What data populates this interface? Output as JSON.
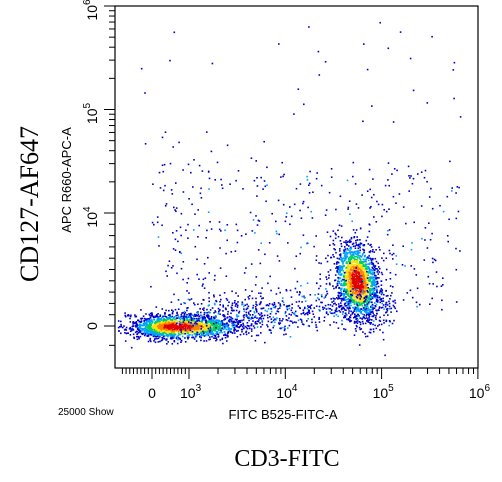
{
  "chart_data": {
    "type": "scatter",
    "title": "",
    "xlabel": "FITC B525-FITC-A",
    "ylabel": "APC R660-APC-A",
    "outer_xlabel": "CD3-FITC",
    "outer_ylabel": "CD127-AF647",
    "event_count": "25000 Show",
    "x_scale": "biexponential",
    "y_scale": "biexponential",
    "x_ticks": [
      {
        "label": "0",
        "value": 0
      },
      {
        "label": "10",
        "exp": "3",
        "value": 1000
      },
      {
        "label": "10",
        "exp": "4",
        "value": 10000
      },
      {
        "label": "10",
        "exp": "5",
        "value": 100000
      },
      {
        "label": "10",
        "exp": "6",
        "value": 1000000
      }
    ],
    "y_ticks": [
      {
        "label": "0",
        "value": 0
      },
      {
        "label": "10",
        "exp": "4",
        "value": 10000
      },
      {
        "label": "10",
        "exp": "5",
        "value": 100000
      },
      {
        "label": "10",
        "exp": "6",
        "value": 1000000
      }
    ],
    "xlim": [
      -800,
      1000000
    ],
    "ylim": [
      -1500,
      1000000
    ],
    "grid": false,
    "legend": "none",
    "color_scale": [
      "#0000cc",
      "#00a0ff",
      "#00d060",
      "#ffe000",
      "#ff8000",
      "#e00000"
    ],
    "populations": [
      {
        "center_x": 600,
        "center_y": 0,
        "density": "high"
      },
      {
        "center_x": 55000,
        "center_y": 4000,
        "density": "high"
      }
    ]
  }
}
